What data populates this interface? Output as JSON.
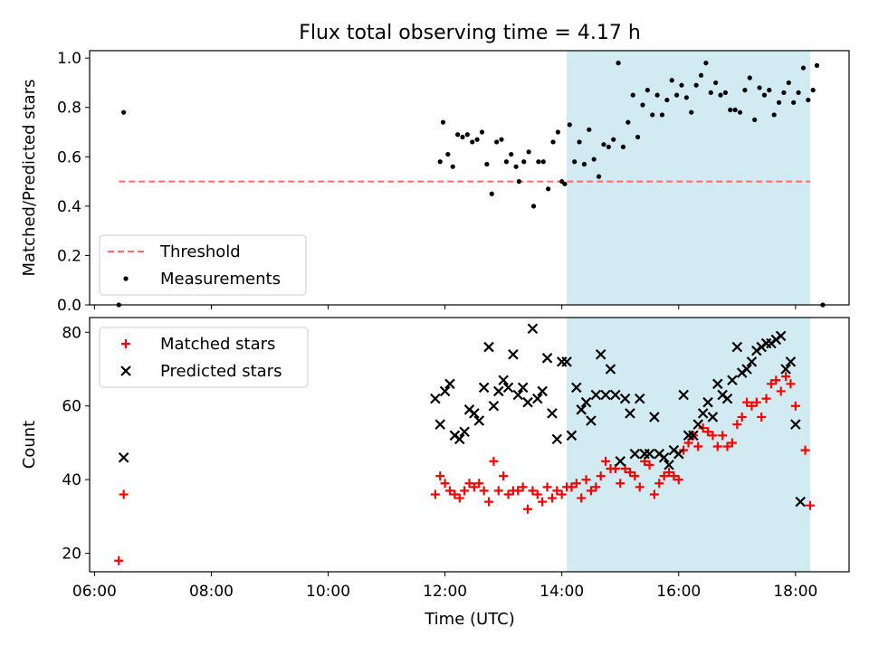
{
  "title": "Flux total observing time = 4.17 h",
  "colors": {
    "threshold": "#ff6b6b",
    "measurement": "#000000",
    "matched": "#ff0000",
    "predicted": "#000000",
    "observing_window": "#add8e6"
  },
  "chart_data": [
    {
      "type": "scatter",
      "ylabel": "Matched/Predicted stars",
      "xlabel": "",
      "ylim": [
        0.0,
        1.03
      ],
      "yticks": [
        0.0,
        0.2,
        0.4,
        0.6,
        0.8,
        1.0
      ],
      "ytick_labels": [
        "0.0",
        "0.2",
        "0.4",
        "0.6",
        "0.8",
        "1.0"
      ],
      "grid": false,
      "legend_position": "lower-left",
      "legend": [
        {
          "label": "Threshold",
          "marker": "dashed-line"
        },
        {
          "label": "Measurements",
          "marker": "dot"
        }
      ],
      "threshold": {
        "name": "Threshold",
        "y": 0.5,
        "x_start": "06:25",
        "x_end": "18:15",
        "style": "dashed"
      },
      "shaded_span": {
        "x_start": "14:05",
        "x_end": "18:15"
      },
      "series": [
        {
          "name": "Measurements",
          "marker": "dot",
          "points": [
            [
              "06:25",
              0.0
            ],
            [
              "06:30",
              0.78
            ],
            [
              "11:55",
              0.58
            ],
            [
              "11:58",
              0.74
            ],
            [
              "12:03",
              0.61
            ],
            [
              "12:08",
              0.56
            ],
            [
              "12:13",
              0.69
            ],
            [
              "12:18",
              0.68
            ],
            [
              "12:23",
              0.69
            ],
            [
              "12:28",
              0.66
            ],
            [
              "12:33",
              0.67
            ],
            [
              "12:38",
              0.7
            ],
            [
              "12:43",
              0.57
            ],
            [
              "12:48",
              0.45
            ],
            [
              "12:53",
              0.66
            ],
            [
              "12:58",
              0.67
            ],
            [
              "13:03",
              0.58
            ],
            [
              "13:08",
              0.61
            ],
            [
              "13:13",
              0.56
            ],
            [
              "13:16",
              0.5
            ],
            [
              "13:21",
              0.58
            ],
            [
              "13:26",
              0.62
            ],
            [
              "13:31",
              0.4
            ],
            [
              "13:36",
              0.58
            ],
            [
              "13:41",
              0.58
            ],
            [
              "13:46",
              0.47
            ],
            [
              "13:51",
              0.66
            ],
            [
              "13:56",
              0.7
            ],
            [
              "14:00",
              0.5
            ],
            [
              "14:03",
              0.49
            ],
            [
              "14:08",
              0.73
            ],
            [
              "14:13",
              0.58
            ],
            [
              "14:18",
              0.66
            ],
            [
              "14:23",
              0.57
            ],
            [
              "14:28",
              0.71
            ],
            [
              "14:33",
              0.59
            ],
            [
              "14:38",
              0.52
            ],
            [
              "14:43",
              0.65
            ],
            [
              "14:48",
              0.64
            ],
            [
              "14:53",
              0.67
            ],
            [
              "14:58",
              0.98
            ],
            [
              "15:03",
              0.64
            ],
            [
              "15:08",
              0.74
            ],
            [
              "15:13",
              0.85
            ],
            [
              "15:18",
              0.68
            ],
            [
              "15:23",
              0.81
            ],
            [
              "15:28",
              0.87
            ],
            [
              "15:33",
              0.77
            ],
            [
              "15:38",
              0.85
            ],
            [
              "15:43",
              0.77
            ],
            [
              "15:48",
              0.83
            ],
            [
              "15:53",
              0.91
            ],
            [
              "15:58",
              0.85
            ],
            [
              "16:03",
              0.89
            ],
            [
              "16:08",
              0.84
            ],
            [
              "16:13",
              0.78
            ],
            [
              "16:18",
              0.89
            ],
            [
              "16:23",
              0.93
            ],
            [
              "16:28",
              0.98
            ],
            [
              "16:33",
              0.86
            ],
            [
              "16:38",
              0.9
            ],
            [
              "16:43",
              0.85
            ],
            [
              "16:48",
              0.86
            ],
            [
              "16:53",
              0.79
            ],
            [
              "16:58",
              0.79
            ],
            [
              "17:03",
              0.78
            ],
            [
              "17:08",
              0.87
            ],
            [
              "17:13",
              0.92
            ],
            [
              "17:18",
              0.75
            ],
            [
              "17:23",
              0.88
            ],
            [
              "17:28",
              0.85
            ],
            [
              "17:33",
              0.87
            ],
            [
              "17:38",
              0.77
            ],
            [
              "17:43",
              0.82
            ],
            [
              "17:48",
              0.86
            ],
            [
              "17:53",
              0.9
            ],
            [
              "17:58",
              0.82
            ],
            [
              "18:03",
              0.86
            ],
            [
              "18:08",
              0.96
            ],
            [
              "18:13",
              0.83
            ],
            [
              "18:18",
              0.87
            ],
            [
              "18:22",
              0.97
            ],
            [
              "18:28",
              0.0
            ]
          ]
        }
      ]
    },
    {
      "type": "scatter",
      "ylabel": "Count",
      "xlabel": "Time (UTC)",
      "ylim": [
        15,
        84
      ],
      "yticks": [
        20,
        40,
        60,
        80
      ],
      "ytick_labels": [
        "20",
        "40",
        "60",
        "80"
      ],
      "xlim": [
        "05:55",
        "18:55"
      ],
      "xticks": [
        "06:00",
        "08:00",
        "10:00",
        "12:00",
        "14:00",
        "16:00",
        "18:00"
      ],
      "xtick_labels": [
        "06:00",
        "08:00",
        "10:00",
        "12:00",
        "14:00",
        "16:00",
        "18:00"
      ],
      "grid": false,
      "legend_position": "top-left",
      "legend": [
        {
          "label": "Matched stars",
          "marker": "plus"
        },
        {
          "label": "Predicted stars",
          "marker": "x"
        }
      ],
      "shaded_span": {
        "x_start": "14:05",
        "x_end": "18:15"
      },
      "series": [
        {
          "name": "Matched stars",
          "marker": "plus",
          "points": [
            [
              "06:25",
              18
            ],
            [
              "06:30",
              36
            ],
            [
              "11:50",
              36
            ],
            [
              "11:55",
              41
            ],
            [
              "12:00",
              39
            ],
            [
              "12:05",
              37
            ],
            [
              "12:10",
              36
            ],
            [
              "12:15",
              35
            ],
            [
              "12:20",
              37
            ],
            [
              "12:25",
              39
            ],
            [
              "12:30",
              38
            ],
            [
              "12:35",
              39
            ],
            [
              "12:40",
              37
            ],
            [
              "12:45",
              34
            ],
            [
              "12:50",
              45
            ],
            [
              "12:55",
              37
            ],
            [
              "13:00",
              41
            ],
            [
              "13:05",
              36
            ],
            [
              "13:10",
              37
            ],
            [
              "13:15",
              37
            ],
            [
              "13:20",
              38
            ],
            [
              "13:25",
              32
            ],
            [
              "13:30",
              37
            ],
            [
              "13:35",
              36
            ],
            [
              "13:40",
              34
            ],
            [
              "13:45",
              38
            ],
            [
              "13:50",
              35
            ],
            [
              "13:55",
              37
            ],
            [
              "14:00",
              36
            ],
            [
              "14:05",
              38
            ],
            [
              "14:10",
              38
            ],
            [
              "14:15",
              39
            ],
            [
              "14:20",
              35
            ],
            [
              "14:25",
              40
            ],
            [
              "14:30",
              37
            ],
            [
              "14:35",
              38
            ],
            [
              "14:40",
              41
            ],
            [
              "14:45",
              45
            ],
            [
              "14:50",
              43
            ],
            [
              "14:55",
              43
            ],
            [
              "15:00",
              39
            ],
            [
              "15:05",
              43
            ],
            [
              "15:10",
              42
            ],
            [
              "15:15",
              41
            ],
            [
              "15:20",
              38
            ],
            [
              "15:25",
              45
            ],
            [
              "15:30",
              44
            ],
            [
              "15:35",
              36
            ],
            [
              "15:40",
              39
            ],
            [
              "15:45",
              41
            ],
            [
              "15:50",
              42
            ],
            [
              "15:55",
              41
            ],
            [
              "16:00",
              40
            ],
            [
              "16:05",
              48
            ],
            [
              "16:10",
              50
            ],
            [
              "16:15",
              52
            ],
            [
              "16:20",
              49
            ],
            [
              "16:25",
              54
            ],
            [
              "16:30",
              53
            ],
            [
              "16:35",
              52
            ],
            [
              "16:40",
              49
            ],
            [
              "16:45",
              52
            ],
            [
              "16:50",
              49
            ],
            [
              "16:55",
              50
            ],
            [
              "17:00",
              55
            ],
            [
              "17:05",
              57
            ],
            [
              "17:10",
              61
            ],
            [
              "17:15",
              60
            ],
            [
              "17:20",
              61
            ],
            [
              "17:25",
              57
            ],
            [
              "17:30",
              62
            ],
            [
              "17:35",
              66
            ],
            [
              "17:40",
              67
            ],
            [
              "17:45",
              64
            ],
            [
              "17:50",
              68
            ],
            [
              "17:55",
              66
            ],
            [
              "18:00",
              60
            ],
            [
              "18:10",
              48
            ],
            [
              "18:15",
              33
            ]
          ]
        },
        {
          "name": "Predicted stars",
          "marker": "x",
          "points": [
            [
              "06:30",
              46
            ],
            [
              "11:50",
              62
            ],
            [
              "11:55",
              55
            ],
            [
              "12:00",
              64
            ],
            [
              "12:05",
              66
            ],
            [
              "12:10",
              52
            ],
            [
              "12:15",
              51
            ],
            [
              "12:20",
              53
            ],
            [
              "12:25",
              59
            ],
            [
              "12:30",
              58
            ],
            [
              "12:35",
              56
            ],
            [
              "12:40",
              65
            ],
            [
              "12:45",
              76
            ],
            [
              "12:50",
              60
            ],
            [
              "12:55",
              64
            ],
            [
              "13:00",
              67
            ],
            [
              "13:05",
              65
            ],
            [
              "13:10",
              74
            ],
            [
              "13:15",
              63
            ],
            [
              "13:20",
              65
            ],
            [
              "13:25",
              61
            ],
            [
              "13:30",
              81
            ],
            [
              "13:35",
              62
            ],
            [
              "13:40",
              64
            ],
            [
              "13:45",
              73
            ],
            [
              "13:50",
              58
            ],
            [
              "13:55",
              51
            ],
            [
              "14:00",
              72
            ],
            [
              "14:05",
              72
            ],
            [
              "14:10",
              52
            ],
            [
              "14:15",
              65
            ],
            [
              "14:20",
              59
            ],
            [
              "14:25",
              61
            ],
            [
              "14:30",
              56
            ],
            [
              "14:35",
              63
            ],
            [
              "14:40",
              74
            ],
            [
              "14:45",
              63
            ],
            [
              "14:50",
              70
            ],
            [
              "14:55",
              63
            ],
            [
              "15:00",
              45
            ],
            [
              "15:05",
              62
            ],
            [
              "15:10",
              58
            ],
            [
              "15:15",
              47
            ],
            [
              "15:20",
              62
            ],
            [
              "15:25",
              47
            ],
            [
              "15:30",
              47
            ],
            [
              "15:35",
              57
            ],
            [
              "15:40",
              47
            ],
            [
              "15:45",
              46
            ],
            [
              "15:50",
              44
            ],
            [
              "15:55",
              48
            ],
            [
              "16:00",
              47
            ],
            [
              "16:05",
              63
            ],
            [
              "16:10",
              52
            ],
            [
              "16:15",
              52
            ],
            [
              "16:20",
              55
            ],
            [
              "16:25",
              58
            ],
            [
              "16:30",
              61
            ],
            [
              "16:35",
              57
            ],
            [
              "16:40",
              66
            ],
            [
              "16:45",
              63
            ],
            [
              "16:50",
              62
            ],
            [
              "16:55",
              67
            ],
            [
              "17:00",
              76
            ],
            [
              "17:05",
              69
            ],
            [
              "17:10",
              70
            ],
            [
              "17:15",
              72
            ],
            [
              "17:20",
              75
            ],
            [
              "17:25",
              76
            ],
            [
              "17:30",
              77
            ],
            [
              "17:35",
              77
            ],
            [
              "17:40",
              78
            ],
            [
              "17:45",
              79
            ],
            [
              "17:50",
              70
            ],
            [
              "17:55",
              72
            ],
            [
              "18:00",
              55
            ],
            [
              "18:05",
              34
            ]
          ]
        }
      ]
    }
  ]
}
